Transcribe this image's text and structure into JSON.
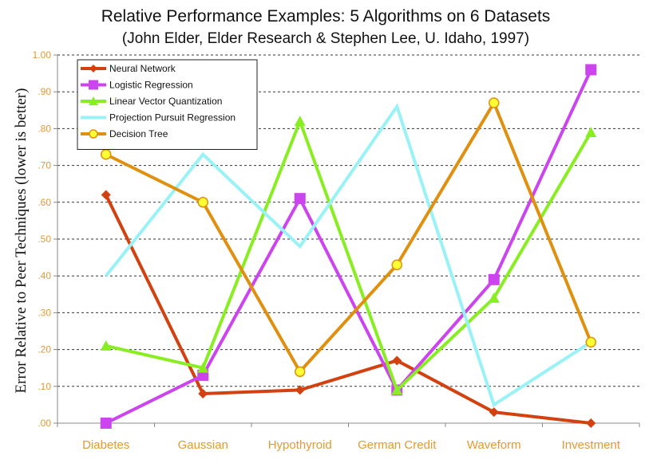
{
  "chart_data": {
    "type": "line",
    "title": "Relative Performance Examples:  5 Algorithms on 6 Datasets",
    "subtitle": "(John Elder, Elder Research & Stephen Lee, U. Idaho, 1997)",
    "xlabel": "",
    "ylabel": "Error Relative to Peer Techniques (lower is better)",
    "categories": [
      "Diabetes",
      "Gaussian",
      "Hypothyroid",
      "German Credit",
      "Waveform",
      "Investment"
    ],
    "ylim": [
      0,
      1.0
    ],
    "yticks": [
      ".00",
      ".10",
      ".20",
      ".30",
      ".40",
      ".50",
      ".60",
      ".70",
      ".80",
      ".90",
      "1.00"
    ],
    "grid": true,
    "legend_position": "top-left",
    "series": [
      {
        "name": "Neural Network",
        "color": "#d2410f",
        "marker": "diamond",
        "values": [
          0.62,
          0.08,
          0.09,
          0.17,
          0.03,
          0.0
        ]
      },
      {
        "name": "Logistic Regression",
        "color": "#cc44ee",
        "marker": "square",
        "values": [
          0.0,
          0.13,
          0.61,
          0.09,
          0.39,
          0.96
        ]
      },
      {
        "name": "Linear Vector Quantization",
        "color": "#88ee22",
        "marker": "triangle",
        "values": [
          0.21,
          0.15,
          0.82,
          0.09,
          0.34,
          0.79
        ]
      },
      {
        "name": "Projection Pursuit Regression",
        "color": "#99f2f5",
        "marker": "none",
        "values": [
          0.4,
          0.73,
          0.48,
          0.86,
          0.05,
          0.22
        ]
      },
      {
        "name": "Decision Tree",
        "color": "#e0900f",
        "marker": "circle",
        "values": [
          0.73,
          0.6,
          0.14,
          0.43,
          0.87,
          0.22
        ]
      }
    ]
  }
}
